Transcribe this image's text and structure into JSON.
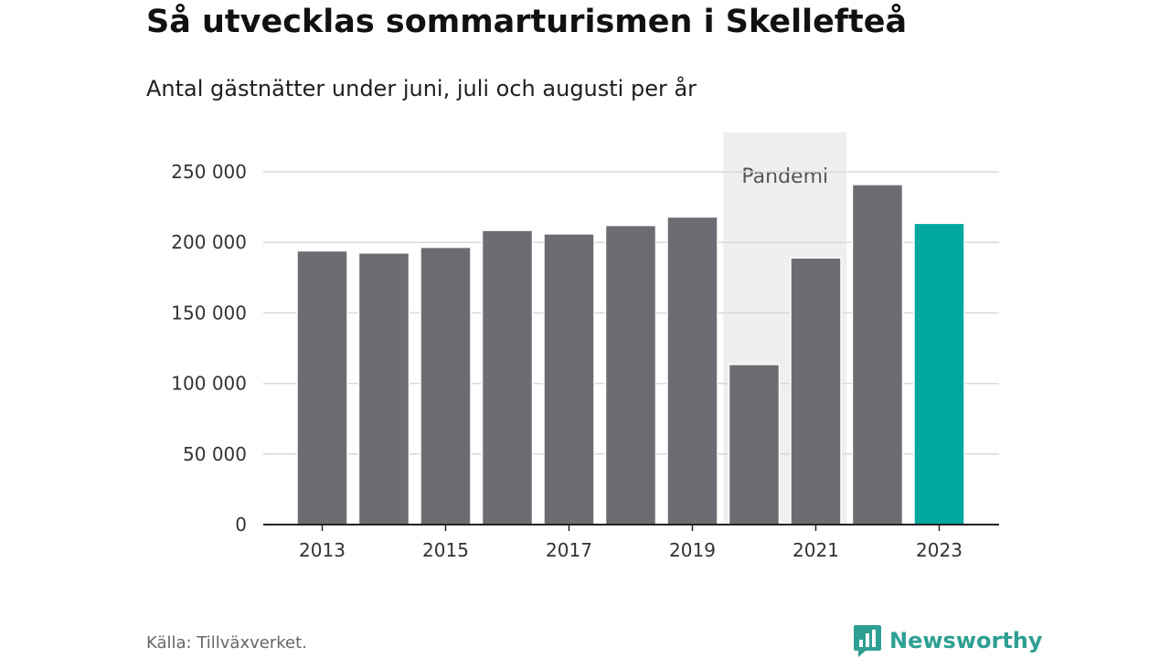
{
  "header": {
    "title": "Så utvecklas sommarturismen i Skellefteå",
    "subtitle": "Antal gästnätter under juni, juli och augusti per år"
  },
  "footer": {
    "source": "Källa: Tillväxverket.",
    "brand": "Newsworthy",
    "brand_icon": "bar-chart-speech-bubble-icon",
    "brand_color": "#2e9f93"
  },
  "chart_data": {
    "type": "bar",
    "categories": [
      "2013",
      "2014",
      "2015",
      "2016",
      "2017",
      "2018",
      "2019",
      "2020",
      "2021",
      "2022",
      "2023"
    ],
    "values": [
      194000,
      192500,
      196500,
      208500,
      206000,
      212000,
      218000,
      113500,
      189000,
      241000,
      213500
    ],
    "x_tick_labels": [
      "2013",
      "2015",
      "2017",
      "2019",
      "2021",
      "2023"
    ],
    "y_ticks": [
      0,
      50000,
      100000,
      150000,
      200000,
      250000
    ],
    "y_tick_labels": [
      "0",
      "50 000",
      "100 000",
      "150 000",
      "200 000",
      "250 000"
    ],
    "ylim": [
      0,
      250000
    ],
    "grid": true,
    "highlight_category": "2023",
    "bar_color": "#6d6c73",
    "highlight_color": "#00a79d",
    "annotation": {
      "text": "Pandemi",
      "from_category": "2020",
      "to_category": "2021",
      "color": "#efefef"
    }
  }
}
